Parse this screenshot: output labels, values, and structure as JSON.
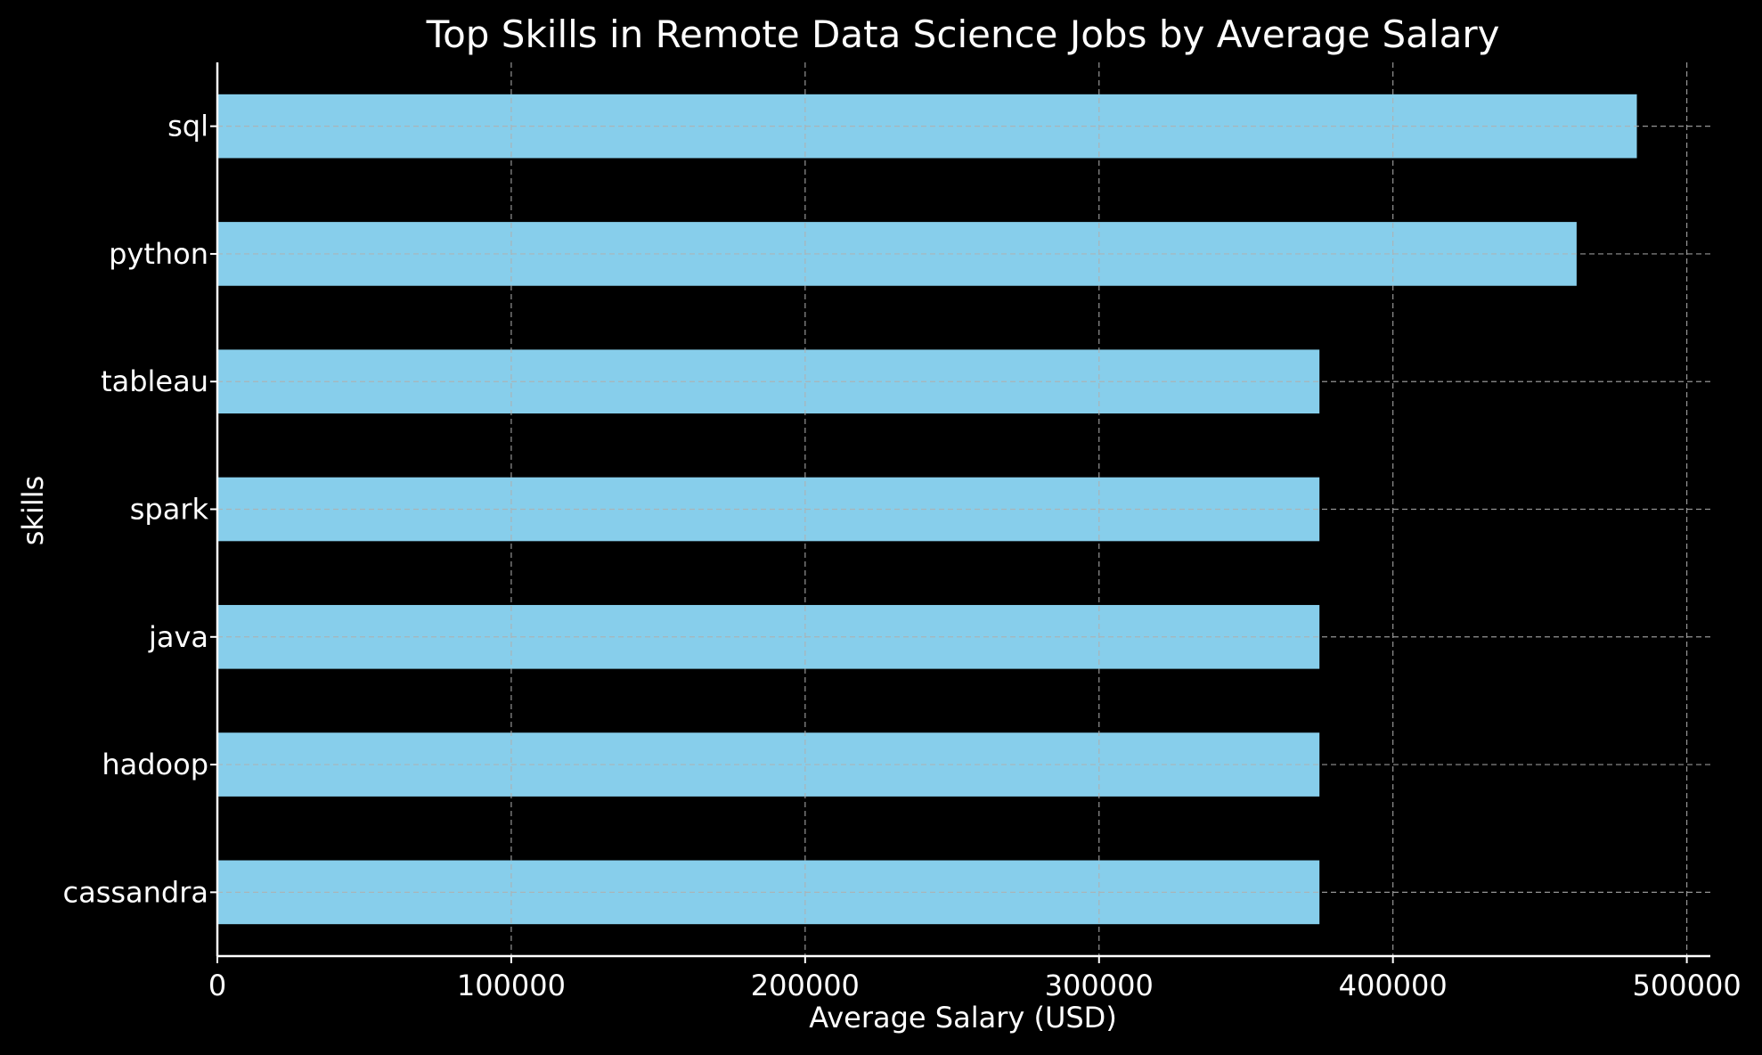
{
  "chart_data": {
    "type": "bar",
    "orientation": "horizontal",
    "title": "Top Skills in Remote Data Science Jobs by Average Salary",
    "xlabel": "Average Salary (USD)",
    "ylabel": "skills",
    "categories": [
      "sql",
      "python",
      "tableau",
      "spark",
      "java",
      "hadoop",
      "cassandra"
    ],
    "values": [
      483000,
      462500,
      375000,
      375000,
      375000,
      375000,
      375000
    ],
    "xlim": [
      0,
      508000
    ],
    "xticks": [
      0,
      100000,
      200000,
      300000,
      400000,
      500000
    ],
    "xtick_labels": [
      "0",
      "100000",
      "200000",
      "300000",
      "400000",
      "500000"
    ],
    "grid": true,
    "colors": {
      "background": "#000000",
      "bar": "#87ceeb",
      "text": "#ffffff",
      "axis": "#ffffff",
      "grid": "#b0b0b0"
    }
  }
}
